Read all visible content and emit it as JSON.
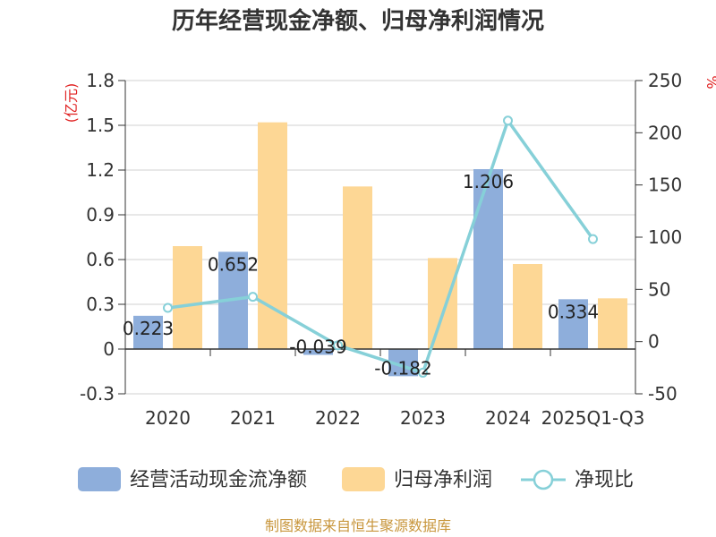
{
  "chart_data": {
    "type": "bar",
    "title": "历年经营现金净额、归母净利润情况",
    "categories": [
      "2020",
      "2021",
      "2022",
      "2023",
      "2024",
      "2025Q1-Q3"
    ],
    "left_axis": {
      "unit": "(亿元)",
      "ylim": [
        -0.3,
        1.8
      ],
      "ticks": [
        "1.8",
        "1.5",
        "1.2",
        "0.9",
        "0.6",
        "0.3",
        "0",
        "-0.3"
      ]
    },
    "right_axis": {
      "unit": "%",
      "ylim": [
        -50,
        250
      ],
      "ticks": [
        "250",
        "200",
        "150",
        "100",
        "50",
        "0",
        "-50"
      ]
    },
    "series": [
      {
        "name": "经营活动现金流净额",
        "type": "bar",
        "axis": "left",
        "color": "#8eaedb",
        "values": [
          0.223,
          0.652,
          -0.039,
          -0.182,
          1.206,
          0.334
        ],
        "labels": [
          "0.223",
          "0.652",
          "-0.039",
          "-0.182",
          "1.206",
          "0.334"
        ]
      },
      {
        "name": "归母净利润",
        "type": "bar",
        "axis": "left",
        "color": "#fdd795",
        "values": [
          0.69,
          1.52,
          1.09,
          0.61,
          0.57,
          0.34
        ]
      },
      {
        "name": "净现比",
        "type": "line",
        "axis": "right",
        "color": "#86d0d8",
        "values": [
          32.3,
          42.9,
          -3.6,
          -29.8,
          211.6,
          98.2
        ]
      }
    ],
    "grid": true,
    "legend_position": "bottom"
  },
  "footer": {
    "source": "制图数据来自恒生聚源数据库"
  }
}
